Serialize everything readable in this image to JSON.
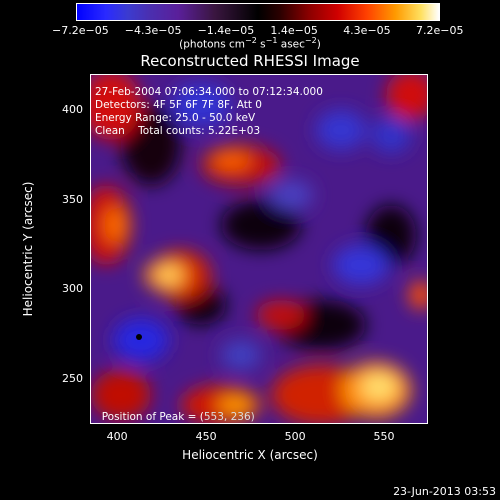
{
  "colorbar": {
    "ticks": [
      "−7.2e−05",
      "−4.3e−05",
      "−1.4e−05",
      "1.4e−05",
      "4.3e−05",
      "7.2e−05"
    ],
    "units_prefix": "(photons cm",
    "units_exp1": "−2",
    "units_mid": " s",
    "units_exp2": "−1",
    "units_mid2": " asec",
    "units_exp3": "−2",
    "units_suffix": ")"
  },
  "image": {
    "title": "Reconstructed RHESSI Image",
    "info_lines": [
      "27-Feb-2004 07:06:34.000 to 07:12:34.000",
      "Detectors: 4F 5F 6F 7F 8F, Att 0",
      "Energy Range: 25.0 - 50.0 keV",
      "Clean    Total counts: 5.22E+03"
    ],
    "peak_label": "Position of Peak = (",
    "peak_value": "553, 236)"
  },
  "axes": {
    "xlabel": "Heliocentric X (arcsec)",
    "ylabel": "Heliocentric Y (arcsec)",
    "xticks": [
      "400",
      "450",
      "500",
      "550"
    ],
    "yticks": [
      "400",
      "350",
      "300",
      "250"
    ],
    "xlim": [
      385,
      575
    ],
    "ylim": [
      225,
      420
    ]
  },
  "footer": {
    "timestamp": "23-Jun-2013 03:53"
  }
}
